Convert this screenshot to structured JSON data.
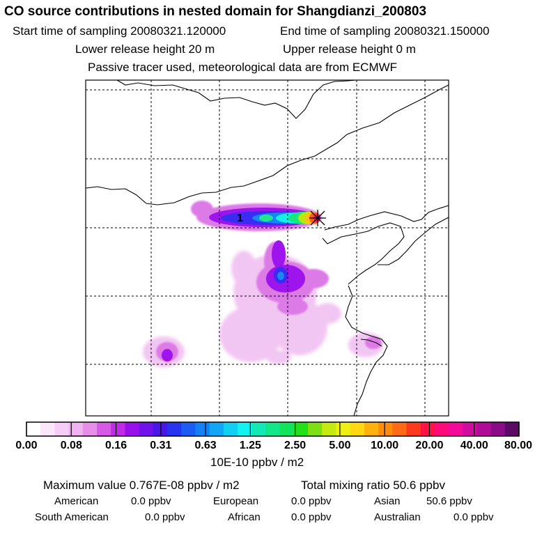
{
  "header": {
    "title": "CO  source contributions in nested domain for Shangdianzi_200803",
    "start": "Start time of sampling 20080321.120000",
    "end": "End time of sampling 20080321.150000",
    "lower": "Lower release height   20 m",
    "upper": "Upper release height    0 m",
    "note": "Passive tracer used, meteorological data are from ECMWF"
  },
  "map": {
    "station_label": "1",
    "marker_icon": "asterisk-marker-icon"
  },
  "colorbar": {
    "colors": [
      "#ffffff",
      "#fbe6fb",
      "#f6cdf6",
      "#f0b2f0",
      "#e68ee8",
      "#d65ae6",
      "#c02ae8",
      "#9a10ec",
      "#7012ea",
      "#4a16ea",
      "#2a34f0",
      "#1a5cf4",
      "#1480f6",
      "#12a6f6",
      "#10d0f4",
      "#12f2ee",
      "#14e8b6",
      "#12e88a",
      "#10e45a",
      "#22e01a",
      "#7ee012",
      "#c4ea10",
      "#eef010",
      "#ffd812",
      "#ffb20e",
      "#ff8c0c",
      "#ff6a16",
      "#ff3a1c",
      "#ff1244",
      "#ff0a78",
      "#f40a98",
      "#d00ca0",
      "#b00c98",
      "#8c0c88",
      "#5c0a66"
    ],
    "ticks": [
      "0.00",
      "0.08",
      "0.16",
      "0.31",
      "0.63",
      "1.25",
      "2.50",
      "5.00",
      "10.00",
      "20.00",
      "40.00",
      "80.00"
    ],
    "units": "10E-10 ppbv / m2"
  },
  "summary": {
    "max": "Maximum value  0.767E-08 ppbv / m2",
    "total": "Total mixing ratio      50.6 ppbv"
  },
  "contributions": [
    {
      "name": "American",
      "value": "0.0 ppbv"
    },
    {
      "name": "European",
      "value": "0.0 ppbv"
    },
    {
      "name": "Asian",
      "value": "50.6 ppbv"
    },
    {
      "name": "South American",
      "value": "0.0 ppbv"
    },
    {
      "name": "African",
      "value": "0.0 ppbv"
    },
    {
      "name": "Australian",
      "value": "0.0 ppbv"
    }
  ]
}
